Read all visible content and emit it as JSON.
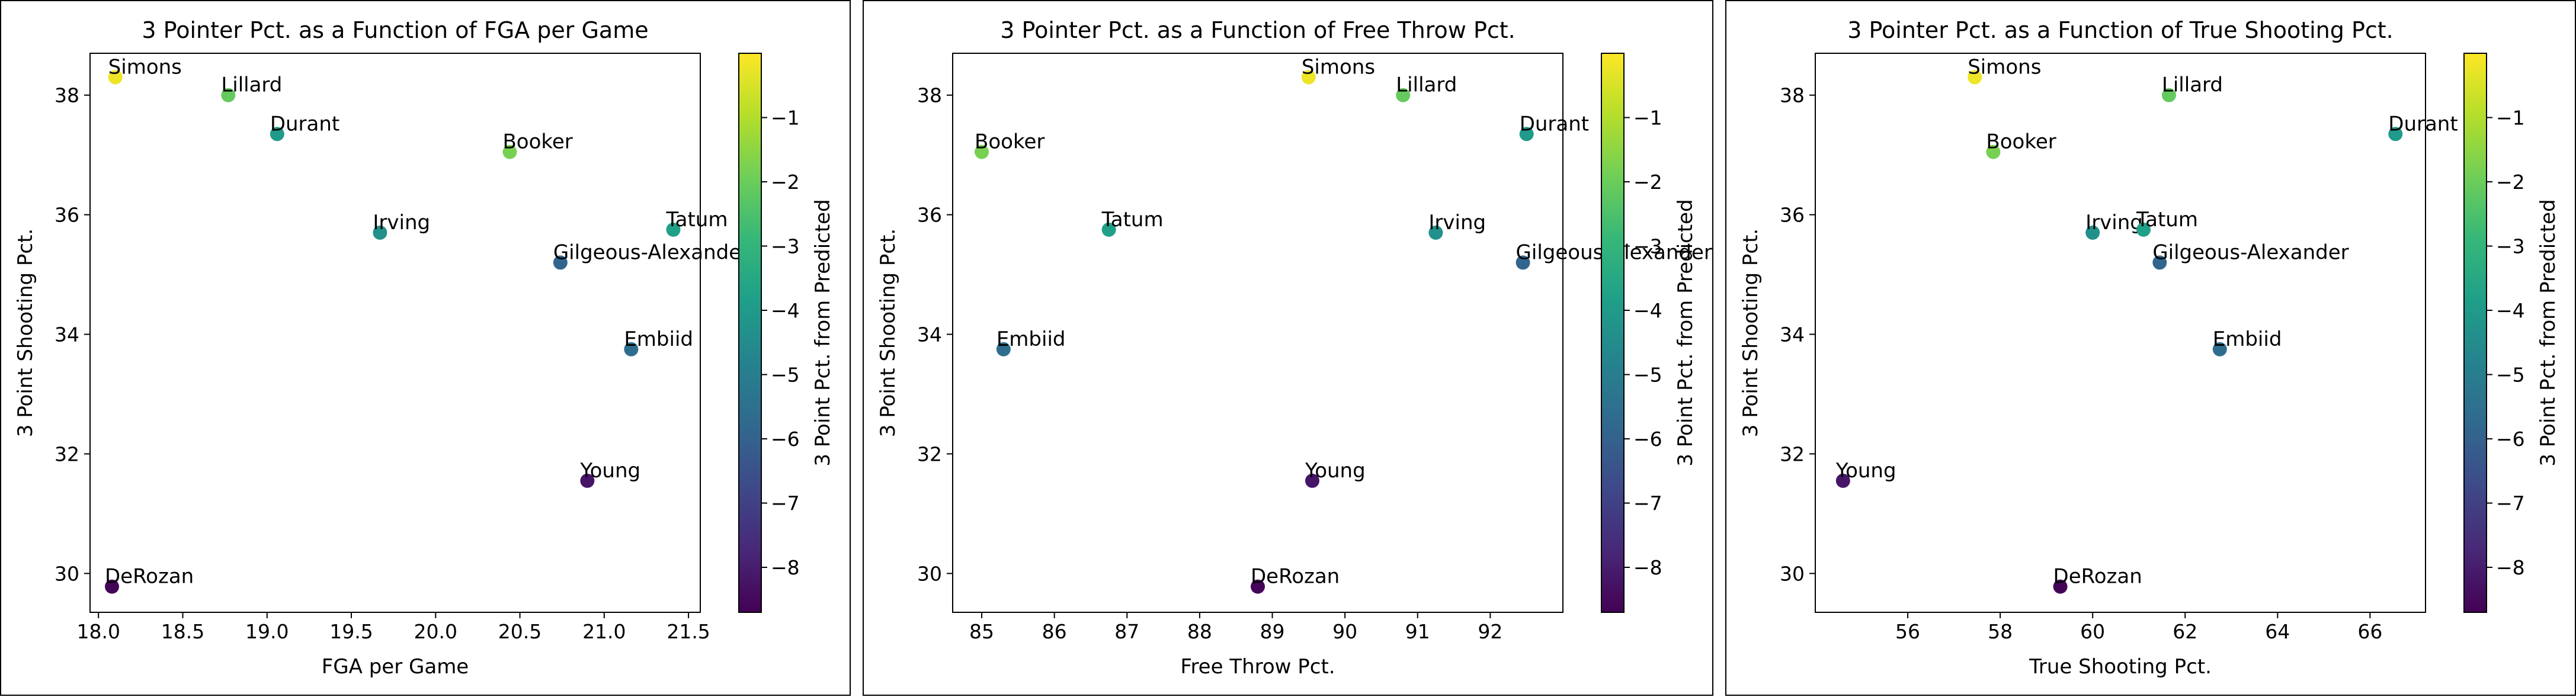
{
  "chart_data": [
    {
      "type": "scatter",
      "title": "3 Pointer Pct. as a Function of FGA per Game",
      "xlabel": "FGA per Game",
      "ylabel": "3 Point Shooting Pct.",
      "colorbar_label": "3 Point Pct. from Predicted",
      "colormap": "viridis",
      "xlim": [
        17.95,
        21.57
      ],
      "ylim": [
        29.35,
        38.7
      ],
      "xticks": [
        18.0,
        18.5,
        19.0,
        19.5,
        20.0,
        20.5,
        21.0,
        21.5
      ],
      "xtick_labels": [
        "18.0",
        "18.5",
        "19.0",
        "19.5",
        "20.0",
        "20.5",
        "21.0",
        "21.5"
      ],
      "yticks": [
        30,
        32,
        34,
        36,
        38
      ],
      "ytick_labels": [
        "30",
        "32",
        "34",
        "36",
        "38"
      ],
      "points": [
        {
          "label": "Simons",
          "x": 18.1,
          "y": 38.3,
          "c": -0.2
        },
        {
          "label": "Lillard",
          "x": 18.77,
          "y": 38.0,
          "c": -2.1
        },
        {
          "label": "Durant",
          "x": 19.06,
          "y": 37.35,
          "c": -4.0
        },
        {
          "label": "Booker",
          "x": 20.44,
          "y": 37.05,
          "c": -1.8
        },
        {
          "label": "Irving",
          "x": 19.67,
          "y": 35.7,
          "c": -4.3
        },
        {
          "label": "Tatum",
          "x": 21.41,
          "y": 35.75,
          "c": -3.8
        },
        {
          "label": "Gilgeous-Alexander",
          "x": 20.74,
          "y": 35.2,
          "c": -5.9
        },
        {
          "label": "Embiid",
          "x": 21.16,
          "y": 33.75,
          "c": -5.6
        },
        {
          "label": "Young",
          "x": 20.9,
          "y": 31.55,
          "c": -8.2
        },
        {
          "label": "DeRozan",
          "x": 18.08,
          "y": 29.78,
          "c": -8.6
        }
      ]
    },
    {
      "type": "scatter",
      "title": "3 Pointer Pct. as a Function of Free Throw Pct.",
      "xlabel": "Free Throw Pct.",
      "ylabel": "3 Point Shooting Pct.",
      "colorbar_label": "3 Point Pct. from Predicted",
      "colormap": "viridis",
      "xlim": [
        84.6,
        93.0
      ],
      "ylim": [
        29.35,
        38.7
      ],
      "xticks": [
        85,
        86,
        87,
        88,
        89,
        90,
        91,
        92
      ],
      "xtick_labels": [
        "85",
        "86",
        "87",
        "88",
        "89",
        "90",
        "91",
        "92"
      ],
      "yticks": [
        30,
        32,
        34,
        36,
        38
      ],
      "ytick_labels": [
        "30",
        "32",
        "34",
        "36",
        "38"
      ],
      "points": [
        {
          "label": "Simons",
          "x": 89.5,
          "y": 38.3,
          "c": -0.2
        },
        {
          "label": "Lillard",
          "x": 90.8,
          "y": 38.0,
          "c": -2.1
        },
        {
          "label": "Durant",
          "x": 92.5,
          "y": 37.35,
          "c": -4.0
        },
        {
          "label": "Booker",
          "x": 85.0,
          "y": 37.05,
          "c": -1.8
        },
        {
          "label": "Tatum",
          "x": 86.75,
          "y": 35.75,
          "c": -3.8
        },
        {
          "label": "Irving",
          "x": 91.25,
          "y": 35.7,
          "c": -4.3
        },
        {
          "label": "Gilgeous-Alexander",
          "x": 92.45,
          "y": 35.2,
          "c": -5.9
        },
        {
          "label": "Embiid",
          "x": 85.3,
          "y": 33.75,
          "c": -5.6
        },
        {
          "label": "Young",
          "x": 89.55,
          "y": 31.55,
          "c": -8.2
        },
        {
          "label": "DeRozan",
          "x": 88.8,
          "y": 29.78,
          "c": -8.6
        }
      ]
    },
    {
      "type": "scatter",
      "title": "3 Pointer Pct. as a Function of True Shooting Pct.",
      "xlabel": "True Shooting Pct.",
      "ylabel": "3 Point Shooting Pct.",
      "colorbar_label": "3 Point Pct. from Predicted",
      "colormap": "viridis",
      "xlim": [
        54.0,
        67.2
      ],
      "ylim": [
        29.35,
        38.7
      ],
      "xticks": [
        56,
        58,
        60,
        62,
        64,
        66
      ],
      "xtick_labels": [
        "56",
        "58",
        "60",
        "62",
        "64",
        "66"
      ],
      "yticks": [
        30,
        32,
        34,
        36,
        38
      ],
      "ytick_labels": [
        "30",
        "32",
        "34",
        "36",
        "38"
      ],
      "points": [
        {
          "label": "Simons",
          "x": 57.45,
          "y": 38.3,
          "c": -0.2
        },
        {
          "label": "Lillard",
          "x": 61.65,
          "y": 38.0,
          "c": -2.1
        },
        {
          "label": "Durant",
          "x": 66.55,
          "y": 37.35,
          "c": -4.0
        },
        {
          "label": "Booker",
          "x": 57.85,
          "y": 37.05,
          "c": -1.8
        },
        {
          "label": "Irving",
          "x": 60.0,
          "y": 35.7,
          "c": -4.3
        },
        {
          "label": "Tatum",
          "x": 61.1,
          "y": 35.75,
          "c": -3.8
        },
        {
          "label": "Gilgeous-Alexander",
          "x": 61.45,
          "y": 35.2,
          "c": -5.9
        },
        {
          "label": "Embiid",
          "x": 62.75,
          "y": 33.75,
          "c": -5.6
        },
        {
          "label": "Young",
          "x": 54.6,
          "y": 31.55,
          "c": -8.2
        },
        {
          "label": "DeRozan",
          "x": 59.3,
          "y": 29.78,
          "c": -8.6
        }
      ]
    }
  ],
  "colorbar": {
    "vmin": -8.7,
    "vmax": 0.0,
    "ticks": [
      -8,
      -7,
      -6,
      -5,
      -4,
      -3,
      -2,
      -1
    ],
    "tick_labels": [
      "−8",
      "−7",
      "−6",
      "−5",
      "−4",
      "−3",
      "−2",
      "−1"
    ]
  },
  "colors": {
    "viridis": [
      "#440154",
      "#482878",
      "#3e4989",
      "#31688e",
      "#26828e",
      "#1f9e89",
      "#35b779",
      "#6ece58",
      "#b5de2b",
      "#fde725"
    ]
  }
}
